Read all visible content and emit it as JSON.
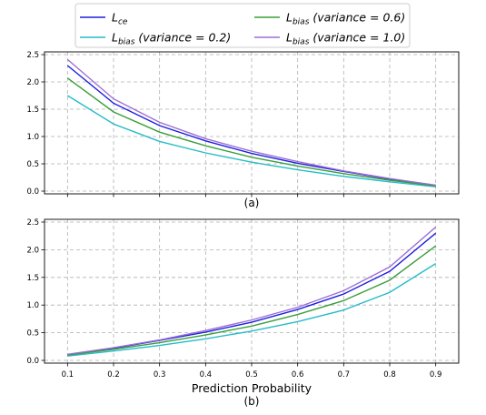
{
  "chart_data": [
    {
      "type": "line",
      "panel_label": "(a)",
      "x": [
        0.1,
        0.2,
        0.3,
        0.4,
        0.5,
        0.6,
        0.7,
        0.8,
        0.9
      ],
      "ylim": [
        0,
        2.5
      ],
      "yticks": [
        "0.0",
        "0.5",
        "1.0",
        "1.5",
        "2.0",
        "2.5"
      ],
      "grid": true,
      "series": [
        {
          "key": "lce",
          "values": [
            2.3,
            1.61,
            1.2,
            0.92,
            0.69,
            0.51,
            0.36,
            0.22,
            0.105
          ]
        },
        {
          "key": "lb02",
          "values": [
            1.75,
            1.23,
            0.91,
            0.7,
            0.53,
            0.39,
            0.27,
            0.17,
            0.08
          ]
        },
        {
          "key": "lb06",
          "values": [
            2.07,
            1.45,
            1.08,
            0.83,
            0.62,
            0.46,
            0.32,
            0.2,
            0.095
          ]
        },
        {
          "key": "lb10",
          "values": [
            2.41,
            1.69,
            1.26,
            0.96,
            0.73,
            0.54,
            0.37,
            0.23,
            0.11
          ]
        }
      ]
    },
    {
      "type": "line",
      "panel_label": "(b)",
      "x": [
        0.1,
        0.2,
        0.3,
        0.4,
        0.5,
        0.6,
        0.7,
        0.8,
        0.9
      ],
      "xticks": [
        "0.1",
        "0.2",
        "0.3",
        "0.4",
        "0.5",
        "0.6",
        "0.7",
        "0.8",
        "0.9"
      ],
      "xlabel": "Prediction Probability",
      "ylim": [
        0,
        2.5
      ],
      "yticks": [
        "0.0",
        "0.5",
        "1.0",
        "1.5",
        "2.0",
        "2.5"
      ],
      "grid": true,
      "series": [
        {
          "key": "lce",
          "values": [
            0.105,
            0.22,
            0.36,
            0.51,
            0.69,
            0.92,
            1.2,
            1.61,
            2.3
          ]
        },
        {
          "key": "lb02",
          "values": [
            0.08,
            0.17,
            0.27,
            0.39,
            0.53,
            0.7,
            0.91,
            1.23,
            1.75
          ]
        },
        {
          "key": "lb06",
          "values": [
            0.095,
            0.2,
            0.32,
            0.46,
            0.62,
            0.83,
            1.08,
            1.45,
            2.07
          ]
        },
        {
          "key": "lb10",
          "values": [
            0.11,
            0.23,
            0.37,
            0.54,
            0.73,
            0.96,
            1.26,
            1.69,
            2.41
          ]
        }
      ]
    }
  ],
  "legend": {
    "placement": "top",
    "entries": [
      {
        "key": "lce",
        "main": "L",
        "sub": "ce",
        "rest": "",
        "color": "#1f1fdf"
      },
      {
        "key": "lb02",
        "main": "L",
        "sub": "bias",
        "rest": " (variance = 0.2)",
        "color": "#25bcc9"
      },
      {
        "key": "lb06",
        "main": "L",
        "sub": "bias",
        "rest": " (variance = 0.6)",
        "color": "#3a9e3a"
      },
      {
        "key": "lb10",
        "main": "L",
        "sub": "bias",
        "rest": " (variance = 1.0)",
        "color": "#9c6fd4"
      }
    ]
  },
  "colors": {
    "grid": "#b0b0b0",
    "axis": "#000000"
  }
}
